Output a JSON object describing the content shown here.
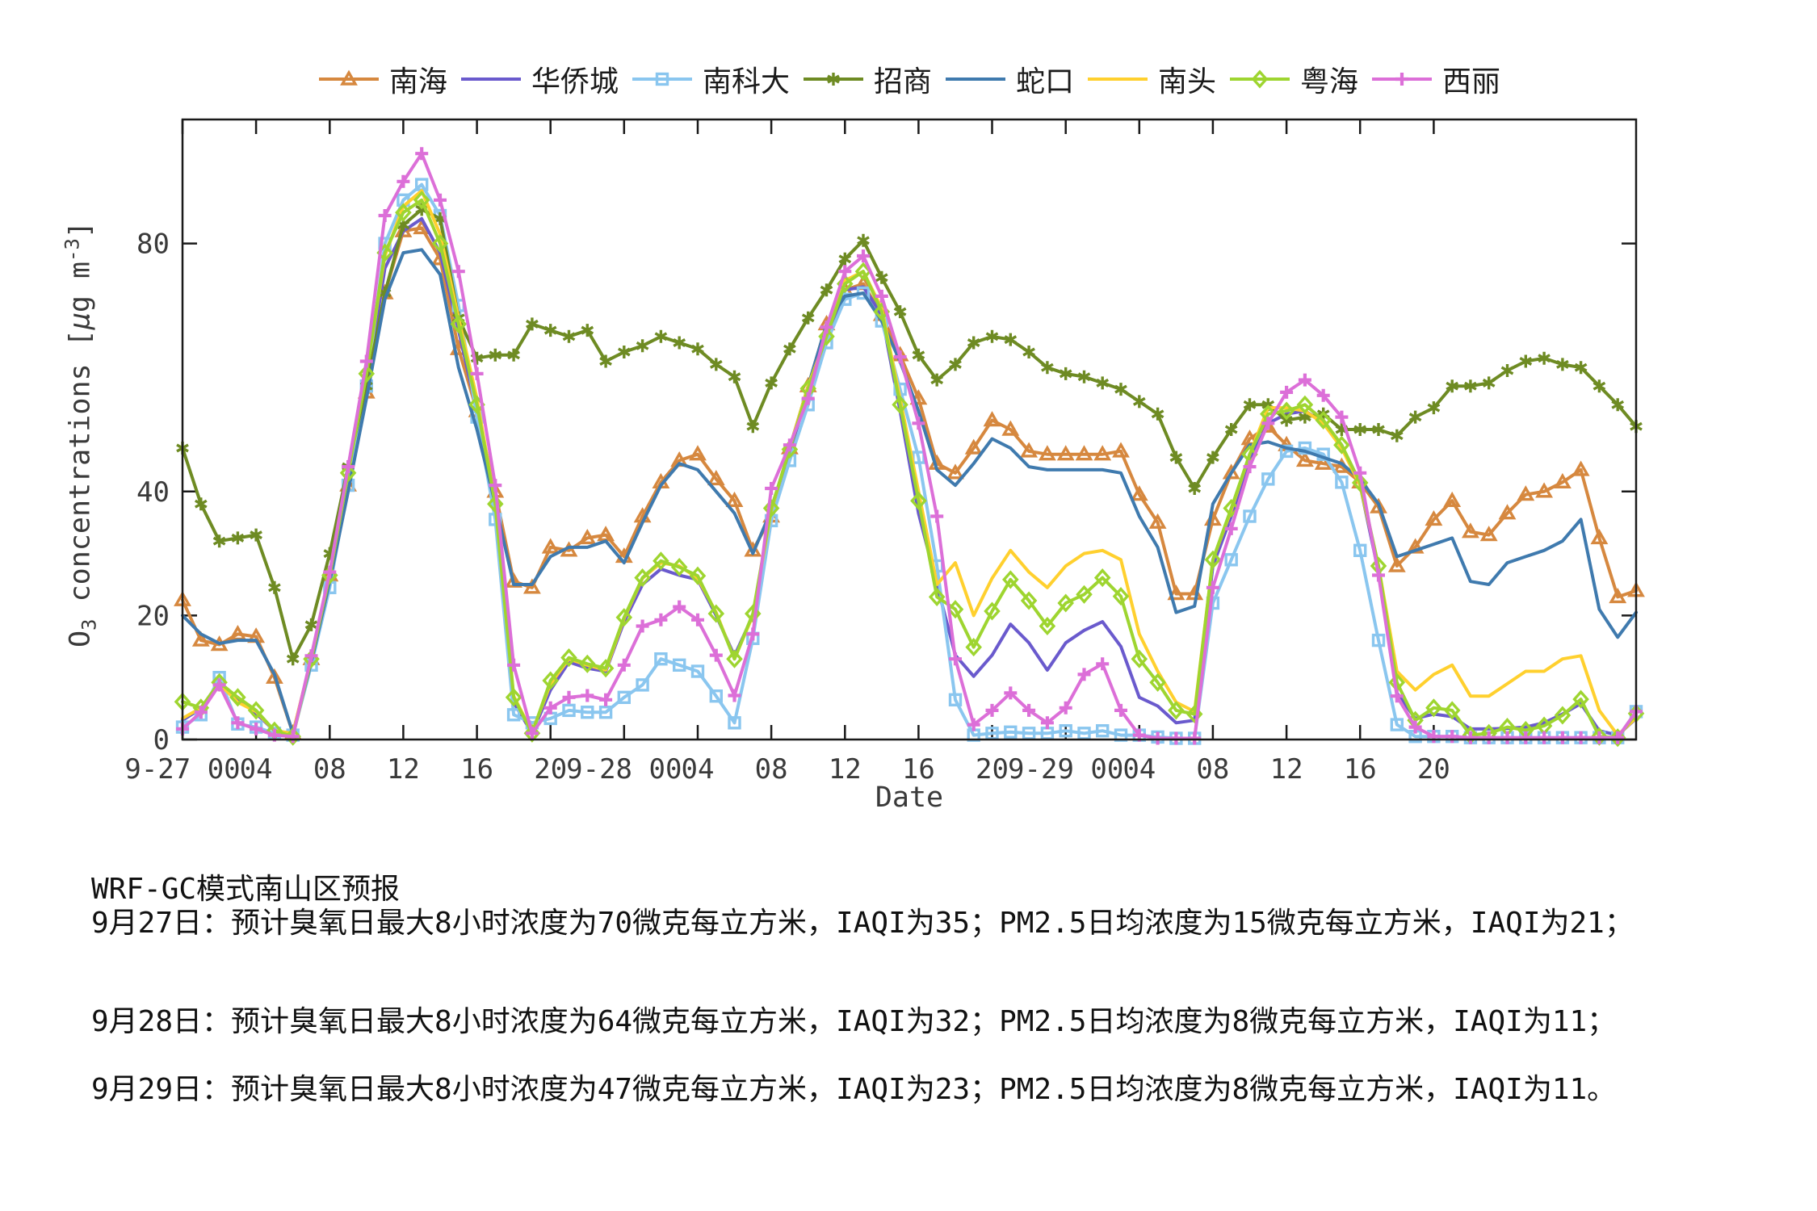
{
  "figure": {
    "xlabel": "Date",
    "ylabel_parts": {
      "base": "O",
      "sub": "3",
      "mid1": " concentrations [",
      "mu": "μ",
      "mid2": "g m",
      "sup": "-3",
      "close": "]"
    }
  },
  "chart_data": {
    "type": "line",
    "title": "",
    "xlabel": "Date",
    "ylabel": "O3 concentrations [ug m-3]",
    "grid": false,
    "legend_position": "top",
    "ylim": [
      0,
      100
    ],
    "yticks": [
      0,
      20,
      40,
      80
    ],
    "x_hours_start": 0,
    "x_hours_step": 1,
    "xticks": [
      {
        "h": 0,
        "label": "9-27 00"
      },
      {
        "h": 4,
        "label": "04"
      },
      {
        "h": 8,
        "label": "08"
      },
      {
        "h": 12,
        "label": "12"
      },
      {
        "h": 16,
        "label": "16"
      },
      {
        "h": 20,
        "label": "20"
      },
      {
        "h": 24,
        "label": "9-28 00"
      },
      {
        "h": 28,
        "label": "04"
      },
      {
        "h": 32,
        "label": "08"
      },
      {
        "h": 36,
        "label": "12"
      },
      {
        "h": 40,
        "label": "16"
      },
      {
        "h": 44,
        "label": "20"
      },
      {
        "h": 48,
        "label": "9-29 00"
      },
      {
        "h": 52,
        "label": "04"
      },
      {
        "h": 56,
        "label": "08"
      },
      {
        "h": 60,
        "label": "12"
      },
      {
        "h": 64,
        "label": "16"
      },
      {
        "h": 68,
        "label": "20"
      }
    ],
    "series": [
      {
        "id": "nanhai",
        "name": "南海",
        "color": "#D6883F",
        "marker": "triangle",
        "values": [
          22.5,
          16,
          15.3,
          17,
          16.6,
          10,
          1,
          13,
          26.5,
          41,
          56,
          72,
          82,
          82.5,
          77.5,
          63,
          53,
          40,
          25.5,
          24.5,
          31,
          30.5,
          32.5,
          33,
          29.5,
          36,
          41.5,
          45,
          46,
          42,
          38.5,
          30.5,
          36,
          47,
          57,
          67,
          72.5,
          73.5,
          68.5,
          62,
          55,
          44.5,
          43,
          47,
          51.5,
          50,
          46.5,
          46,
          46,
          46,
          46,
          46.5,
          39.5,
          35,
          23.5,
          23.5,
          35.5,
          43,
          48.5,
          50.5,
          47.5,
          45,
          44.5,
          44,
          41.5,
          37.5,
          28,
          31,
          35.5,
          38.5,
          33.5,
          33,
          36.5,
          39.5,
          40,
          41.5,
          43.5,
          32.5,
          23,
          24
        ]
      },
      {
        "id": "huaqiaocheng",
        "name": "华侨城",
        "color": "#6A5ACD",
        "marker": "none",
        "values": [
          3.1,
          5,
          9.3,
          6.5,
          4.2,
          1.4,
          1,
          12.5,
          26,
          42,
          57,
          76,
          82,
          84,
          78.5,
          66,
          53,
          37,
          6,
          1,
          8,
          12.5,
          11.5,
          11,
          19,
          25,
          27.5,
          26.5,
          25.8,
          20,
          13.5,
          20,
          36.5,
          46.5,
          56,
          64.5,
          72.5,
          73,
          68.5,
          53,
          36.5,
          25,
          13.6,
          10.2,
          13.6,
          18.6,
          15.6,
          11.2,
          15.6,
          17.6,
          19,
          15,
          6.8,
          5.4,
          2.7,
          3.1,
          28,
          36,
          45,
          51,
          52.5,
          53,
          51.2,
          47.5,
          41,
          27,
          7.5,
          3.4,
          4.1,
          3.7,
          1.7,
          1.7,
          1.8,
          2,
          2.7,
          4.1,
          5.8,
          1.4,
          0.7,
          3.4
        ]
      },
      {
        "id": "nankeda",
        "name": "南科大",
        "color": "#8AC6EF",
        "marker": "square",
        "values": [
          2,
          4,
          10,
          2.5,
          2,
          1,
          0.7,
          12,
          24.5,
          41,
          57,
          80,
          87,
          89.5,
          84.5,
          70,
          52,
          35.5,
          4,
          2.7,
          3.4,
          4.7,
          4.4,
          4.4,
          6.8,
          8.8,
          13,
          12,
          11,
          7,
          2.7,
          16.3,
          35.3,
          45,
          54,
          64,
          71,
          72,
          67.5,
          56.5,
          45.5,
          28,
          6.4,
          0.7,
          1,
          1.2,
          1,
          1,
          1.4,
          1,
          1.4,
          0.7,
          0.7,
          0.4,
          0.2,
          0.2,
          22,
          29,
          36,
          42,
          46.5,
          47,
          46,
          41.5,
          30.5,
          16,
          2.4,
          0.5,
          0.5,
          0.5,
          0.3,
          0.3,
          0.3,
          0.3,
          0.3,
          0.3,
          0.3,
          0.3,
          0.3,
          4.5
        ]
      },
      {
        "id": "zhaoshang",
        "name": "招商",
        "color": "#6E8B23",
        "marker": "star",
        "values": [
          47,
          38,
          32,
          32.5,
          33,
          24.5,
          13,
          18.5,
          30,
          44,
          57,
          72,
          83,
          85.5,
          84,
          68,
          61.5,
          62,
          62,
          67,
          66,
          65,
          66,
          61,
          62.5,
          63.5,
          65,
          64,
          63,
          60.5,
          58.5,
          50.5,
          57.5,
          63,
          68,
          72.5,
          77.5,
          80.5,
          74.5,
          69,
          62,
          58,
          60.5,
          64,
          65,
          64.5,
          62.5,
          60,
          59,
          58.5,
          57.5,
          56.5,
          54.5,
          52.5,
          45.5,
          40.5,
          45.5,
          50,
          54,
          54,
          51.5,
          52,
          52.5,
          50,
          50,
          50,
          49,
          52,
          53.5,
          57,
          57,
          57.5,
          59.5,
          61,
          61.5,
          60.5,
          60,
          57,
          54,
          50.5
        ]
      },
      {
        "id": "shekou",
        "name": "蛇口",
        "color": "#3F7AAE",
        "marker": "none",
        "values": [
          20,
          17,
          15.5,
          16,
          16,
          10.5,
          1,
          12.5,
          25.5,
          40,
          55,
          71,
          78.5,
          79,
          75,
          60,
          50,
          38,
          25,
          25,
          29.5,
          31,
          31,
          32,
          28.5,
          35,
          41,
          44.5,
          43.5,
          40,
          36.5,
          30,
          37,
          47,
          57,
          67,
          71.5,
          72,
          67.5,
          61,
          53,
          43.5,
          41,
          44.5,
          48.5,
          47,
          44,
          43.5,
          43.5,
          43.5,
          43.5,
          43,
          36,
          31,
          20.5,
          21.5,
          38,
          43,
          47.5,
          48,
          47,
          46.5,
          45.5,
          44.5,
          42,
          38,
          29.5,
          30.5,
          31.5,
          32.5,
          25.5,
          25,
          28.5,
          29.5,
          30.5,
          32,
          35.5,
          21,
          16.5,
          20.5
        ]
      },
      {
        "id": "nantou",
        "name": "南头",
        "color": "#FFD02E",
        "marker": "none",
        "values": [
          3.4,
          5.1,
          9,
          6,
          4.5,
          1.4,
          1,
          13,
          26.5,
          43,
          59,
          78,
          86,
          88.5,
          81.5,
          68,
          55,
          38,
          7,
          1.2,
          9,
          13,
          12,
          11.2,
          19.5,
          26,
          28.5,
          28,
          26,
          20.5,
          13,
          20,
          37,
          47,
          57,
          65,
          74,
          75.5,
          69.5,
          55,
          40,
          25,
          28.5,
          20,
          26,
          30.5,
          27,
          24.5,
          28,
          30,
          30.5,
          29,
          17,
          11,
          6,
          4.5,
          29,
          37,
          46,
          53.5,
          53.5,
          53,
          51,
          47,
          41,
          28,
          11,
          8,
          10.5,
          12,
          7,
          7,
          9,
          11,
          11,
          13,
          13.5,
          4.7,
          0.7,
          3.5
        ]
      },
      {
        "id": "yuehai",
        "name": "粤海",
        "color": "#9ED530",
        "marker": "diamond",
        "values": [
          6.1,
          5.1,
          9.2,
          6.8,
          4.7,
          1.4,
          0.5,
          13,
          26.5,
          43,
          59,
          78.5,
          85,
          87,
          80,
          67,
          54,
          38,
          6.8,
          1,
          9.5,
          13.2,
          12.2,
          11.5,
          19.7,
          26.1,
          28.8,
          27.8,
          26.4,
          20.3,
          13,
          20.3,
          37.3,
          46.8,
          56.6,
          65,
          73.5,
          75.5,
          69,
          54,
          38.5,
          23,
          21,
          14.9,
          20.7,
          25.8,
          22.4,
          18.3,
          22,
          23.4,
          26.1,
          23.1,
          13,
          9.2,
          4.7,
          4.1,
          29,
          37.3,
          46,
          52.5,
          53,
          54,
          51.5,
          47.5,
          41.4,
          28,
          9.2,
          3.1,
          5.1,
          4.7,
          0.7,
          1,
          2,
          1.5,
          2.2,
          3.9,
          6.5,
          0.5,
          0.3,
          4.2
        ]
      },
      {
        "id": "xili",
        "name": "西丽",
        "color": "#DC6FD8",
        "marker": "plus",
        "values": [
          1.7,
          4.4,
          8.8,
          2.7,
          1.7,
          0.7,
          0.5,
          13.5,
          27,
          44,
          61,
          84.5,
          90,
          94.5,
          87,
          75.5,
          59,
          41,
          12,
          1,
          5.1,
          6.8,
          7.1,
          6.4,
          12,
          18.3,
          19.3,
          21.4,
          19.3,
          13.6,
          7.1,
          17,
          40.5,
          47.5,
          55,
          66.5,
          75.5,
          78,
          71.5,
          61.7,
          51,
          36,
          13,
          2.4,
          4.7,
          7.5,
          4.7,
          2.7,
          5.1,
          10.5,
          12.2,
          4.7,
          0.7,
          0.2,
          0.2,
          0.2,
          24.5,
          34,
          44,
          51,
          56,
          58,
          55.5,
          52,
          43,
          26.5,
          7,
          2,
          0.5,
          0.5,
          0.3,
          0.3,
          0.3,
          0.3,
          0.3,
          0.3,
          0.3,
          0.3,
          0.3,
          4.5
        ]
      }
    ]
  },
  "forecast": {
    "title": "WRF-GC模式南山区预报",
    "lines": [
      "9月27日：预计臭氧日最大8小时浓度为70微克每立方米，IAQI为35；PM2.5日均浓度为15微克每立方米，IAQI为21；",
      "9月28日：预计臭氧日最大8小时浓度为64微克每立方米，IAQI为32；PM2.5日均浓度为8微克每立方米，IAQI为11；",
      "9月29日：预计臭氧日最大8小时浓度为47微克每立方米，IAQI为23；PM2.5日均浓度为8微克每立方米，IAQI为11。"
    ]
  }
}
